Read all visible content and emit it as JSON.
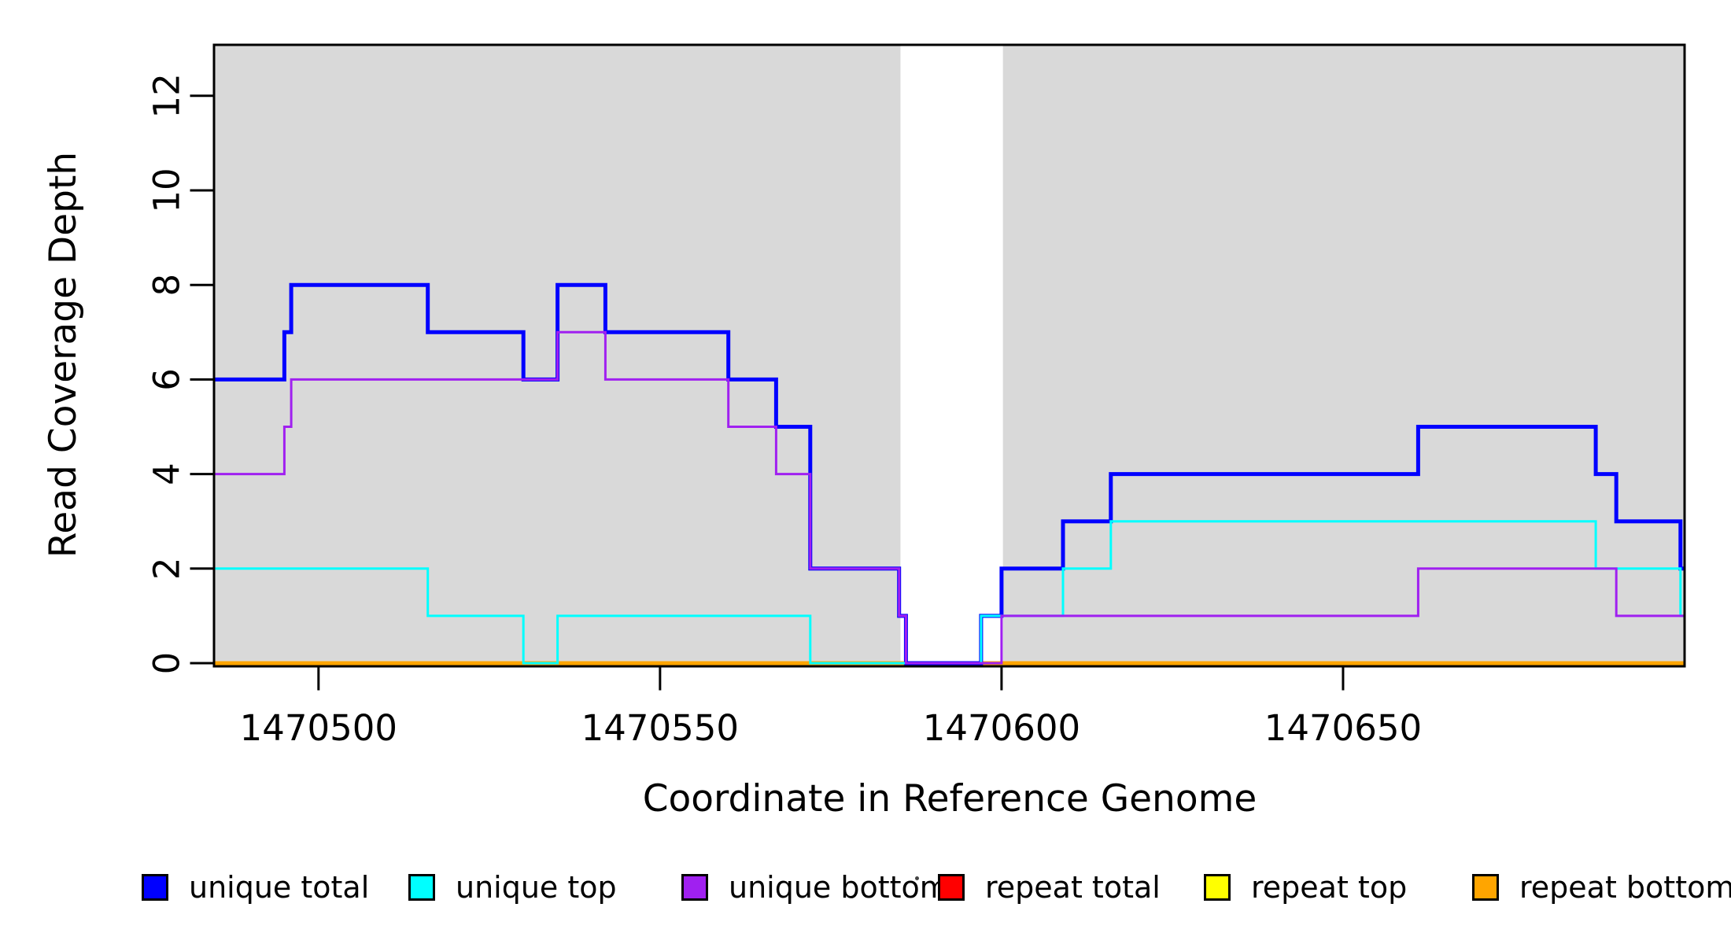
{
  "chart_data": {
    "type": "line",
    "subtype": "step",
    "title": "",
    "xlabel": "Coordinate in Reference Genome",
    "ylabel": "Read Coverage Depth",
    "xlim": [
      1470484.7,
      1470700
    ],
    "ylim": [
      0,
      13.08
    ],
    "xticks": [
      1470500,
      1470550,
      1470600,
      1470650
    ],
    "yticks": [
      0,
      2,
      4,
      6,
      8,
      10,
      12
    ],
    "grid": false,
    "legend_position": "bottom",
    "background_shading": {
      "color": "#d9d9d9",
      "regions": [
        [
          1470484.7,
          1470585.2
        ],
        [
          1470600.2,
          1470700
        ]
      ],
      "unshaded_gap": [
        1470585.2,
        1470600.2
      ]
    },
    "draw_order": [
      "repeat total",
      "repeat top",
      "repeat bottom",
      "unique total",
      "unique top",
      "unique bottom"
    ],
    "series": [
      {
        "name": "repeat total",
        "color": "#ff0000",
        "line_width": 3,
        "steps": [
          [
            1470484.7,
            0
          ]
        ]
      },
      {
        "name": "repeat top",
        "color": "#ffff00",
        "line_width": 3,
        "steps": [
          [
            1470484.7,
            0
          ]
        ]
      },
      {
        "name": "repeat bottom",
        "color": "#ffa500",
        "line_width": 5,
        "steps": [
          [
            1470484.7,
            0
          ]
        ]
      },
      {
        "name": "unique total",
        "color": "#0000ff",
        "line_width": 5,
        "steps": [
          [
            1470484.7,
            6
          ],
          [
            1470495,
            7
          ],
          [
            1470496,
            8
          ],
          [
            1470516,
            7
          ],
          [
            1470530,
            6
          ],
          [
            1470535,
            8
          ],
          [
            1470542,
            7
          ],
          [
            1470560,
            6
          ],
          [
            1470567,
            5
          ],
          [
            1470572,
            2
          ],
          [
            1470585,
            1
          ],
          [
            1470586,
            0
          ],
          [
            1470597,
            1
          ],
          [
            1470600,
            2
          ],
          [
            1470609,
            3
          ],
          [
            1470616,
            4
          ],
          [
            1470661,
            5
          ],
          [
            1470687,
            4
          ],
          [
            1470690,
            3
          ],
          [
            1470699.4,
            2
          ]
        ]
      },
      {
        "name": "unique top",
        "color": "#00ffff",
        "line_width": 3,
        "steps": [
          [
            1470484.7,
            2
          ],
          [
            1470516,
            1
          ],
          [
            1470530,
            0
          ],
          [
            1470535,
            1
          ],
          [
            1470572,
            0
          ],
          [
            1470597,
            1
          ],
          [
            1470609,
            2
          ],
          [
            1470616,
            3
          ],
          [
            1470687,
            2
          ],
          [
            1470699.4,
            1
          ]
        ]
      },
      {
        "name": "unique bottom",
        "color": "#a020f0",
        "line_width": 3,
        "steps": [
          [
            1470484.7,
            4
          ],
          [
            1470495,
            5
          ],
          [
            1470496,
            6
          ],
          [
            1470535,
            7
          ],
          [
            1470542,
            6
          ],
          [
            1470560,
            5
          ],
          [
            1470567,
            4
          ],
          [
            1470572,
            2
          ],
          [
            1470585,
            1
          ],
          [
            1470586,
            0
          ],
          [
            1470600,
            1
          ],
          [
            1470661,
            2
          ],
          [
            1470690,
            1
          ]
        ]
      }
    ]
  },
  "legend": {
    "items": [
      {
        "label": "unique total",
        "color": "#0000ff"
      },
      {
        "label": "unique top",
        "color": "#00ffff"
      },
      {
        "label": "unique bottom",
        "color": "#a020f0"
      },
      {
        "label": "repeat total",
        "color": "#ff0000"
      },
      {
        "label": "repeat top",
        "color": "#ffff00"
      },
      {
        "label": "repeat bottom",
        "color": "#ffa500"
      }
    ]
  },
  "colors": {
    "panel_shading": "#d9d9d9",
    "plot_border": "#000000",
    "background": "#ffffff"
  }
}
